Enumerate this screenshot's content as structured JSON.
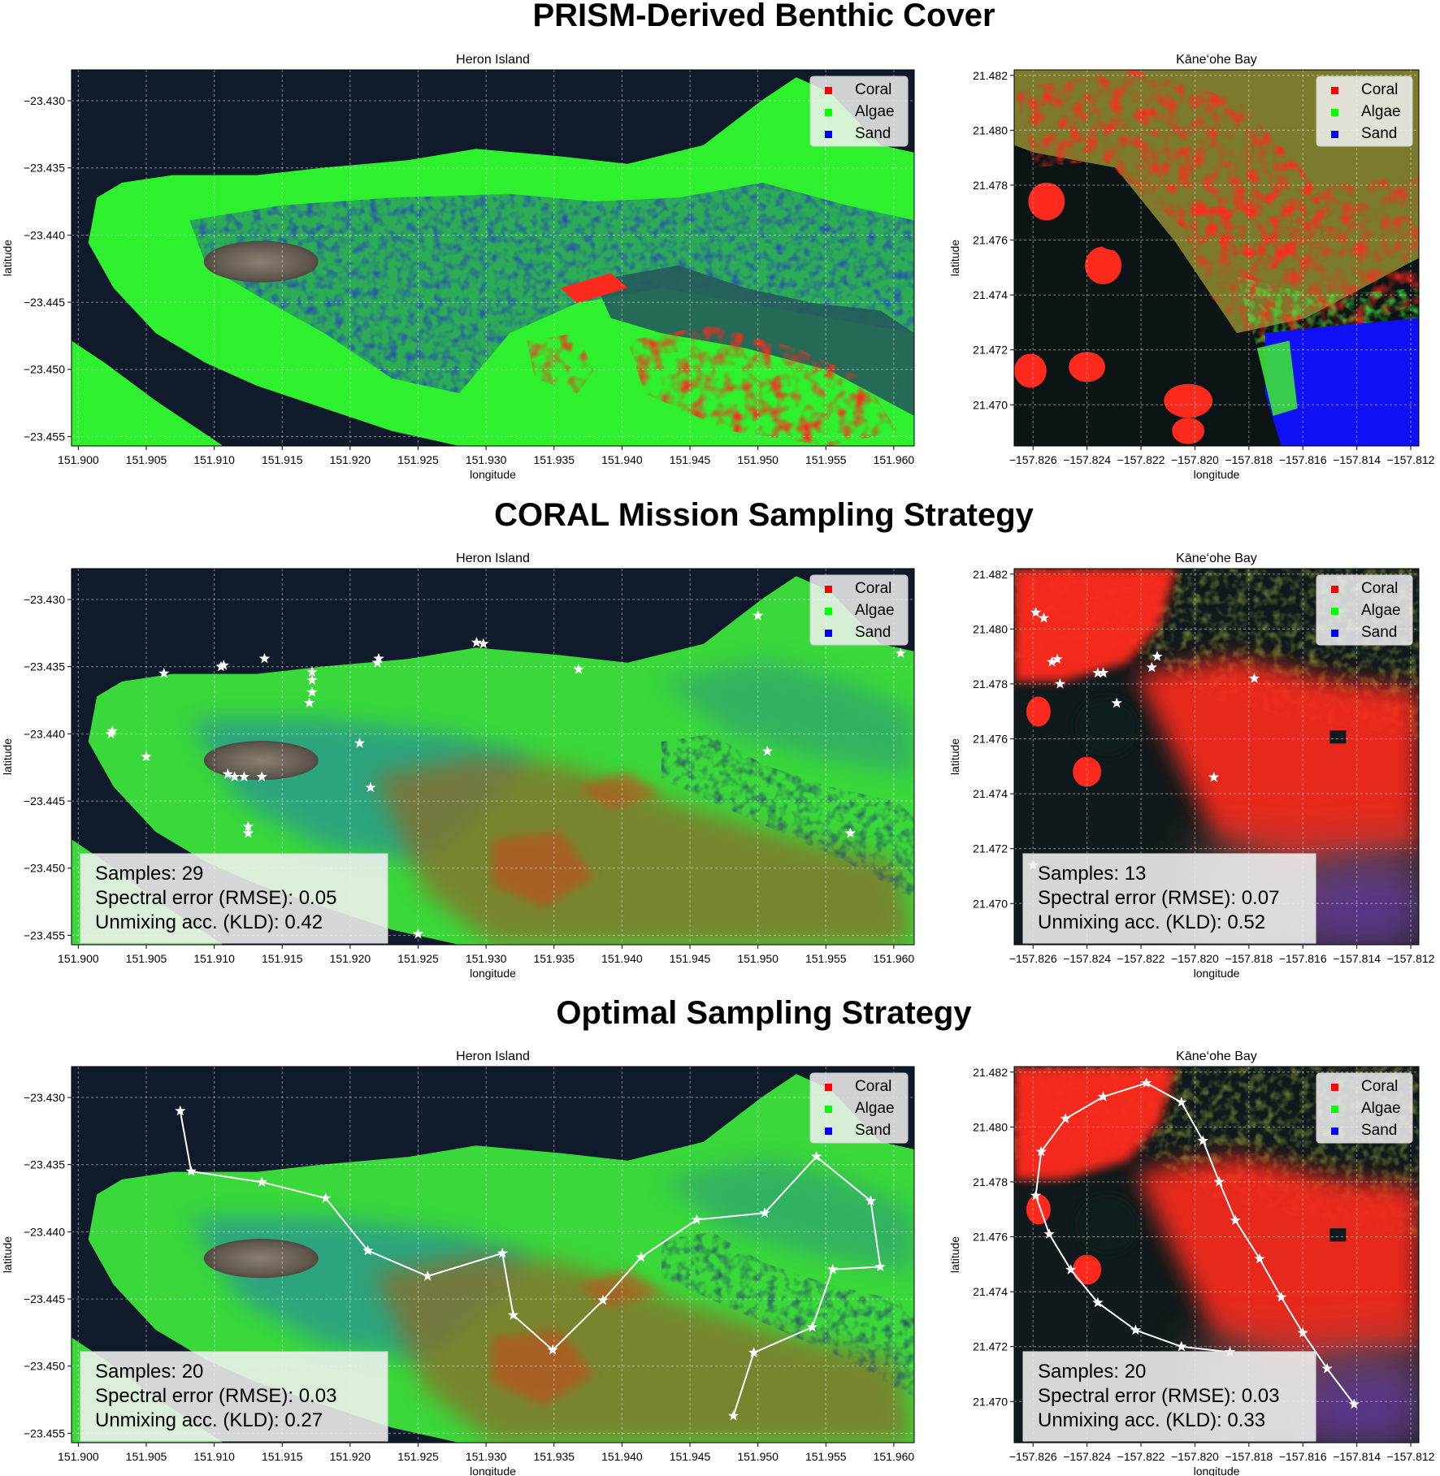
{
  "section_titles": [
    "PRISM-Derived Benthic Cover",
    "CORAL Mission Sampling Strategy",
    "Optimal Sampling Strategy"
  ],
  "legend": [
    {
      "label": "Coral",
      "color": "#ff0000"
    },
    {
      "label": "Algae",
      "color": "#00ff00"
    },
    {
      "label": "Sand",
      "color": "#0000ff"
    }
  ],
  "colors": {
    "coral": "#ff2a1e",
    "algae": "#2ef02e",
    "sand": "#1f3ee0",
    "deep_water": "#0f1a2a",
    "grid": "#ffffff",
    "path": "#ffffff",
    "land": "#6e6458"
  },
  "chart_data": [
    {
      "type": "heatmap",
      "row": 0,
      "title": "Heron Island",
      "xlabel": "longitude",
      "ylabel": "latitude",
      "xlim": [
        151.8995,
        151.9615
      ],
      "ylim": [
        -23.4557,
        -23.4277
      ],
      "xticks": [
        "151.900",
        "151.905",
        "151.910",
        "151.915",
        "151.920",
        "151.925",
        "151.930",
        "151.935",
        "151.940",
        "151.945",
        "151.950",
        "151.955",
        "151.960"
      ],
      "yticks": [
        "−23.430",
        "−23.435",
        "−23.440",
        "−23.445",
        "−23.450",
        "−23.455"
      ],
      "grid": true,
      "legend_position": "top-right",
      "map_style": "heron-classified",
      "samples": [],
      "path": false
    },
    {
      "type": "heatmap",
      "row": 0,
      "title": "Kāne‘ohe Bay",
      "xlabel": "longitude",
      "ylabel": "latitude",
      "xlim": [
        -157.8267,
        -157.8117
      ],
      "ylim": [
        21.4685,
        21.4822
      ],
      "xticks": [
        "−157.826",
        "−157.824",
        "−157.822",
        "−157.820",
        "−157.818",
        "−157.816",
        "−157.814",
        "−157.812"
      ],
      "yticks": [
        "21.482",
        "21.480",
        "21.478",
        "21.476",
        "21.474",
        "21.472",
        "21.470"
      ],
      "grid": true,
      "legend_position": "top-right",
      "map_style": "kaneohe-classified",
      "samples": [],
      "path": false
    },
    {
      "type": "heatmap",
      "row": 1,
      "title": "Heron Island",
      "xlabel": "longitude",
      "ylabel": "latitude",
      "xlim": [
        151.8995,
        151.9615
      ],
      "ylim": [
        -23.4557,
        -23.4277
      ],
      "xticks": [
        "151.900",
        "151.905",
        "151.910",
        "151.915",
        "151.920",
        "151.925",
        "151.930",
        "151.935",
        "151.940",
        "151.945",
        "151.950",
        "151.955",
        "151.960"
      ],
      "yticks": [
        "−23.430",
        "−23.435",
        "−23.440",
        "−23.445",
        "−23.450",
        "−23.455"
      ],
      "grid": true,
      "legend_position": "top-right",
      "map_style": "heron-smooth",
      "samples": [
        [
          151.9025,
          -23.4398
        ],
        [
          151.905,
          -23.4417
        ],
        [
          151.9063,
          -23.4355
        ],
        [
          151.9105,
          -23.435
        ],
        [
          151.9107,
          -23.4349
        ],
        [
          151.911,
          -23.443
        ],
        [
          151.9115,
          -23.4432
        ],
        [
          151.9122,
          -23.4432
        ],
        [
          151.9125,
          -23.4469
        ],
        [
          151.9125,
          -23.4474
        ],
        [
          151.9137,
          -23.4344
        ],
        [
          151.9172,
          -23.4354
        ],
        [
          151.9172,
          -23.4369
        ],
        [
          151.917,
          -23.4377
        ],
        [
          151.9207,
          -23.4407
        ],
        [
          151.9215,
          -23.444
        ],
        [
          151.922,
          -23.4347
        ],
        [
          151.9221,
          -23.4344
        ],
        [
          151.925,
          -23.4549
        ],
        [
          151.9293,
          -23.4332
        ],
        [
          151.9298,
          -23.4333
        ],
        [
          151.9368,
          -23.4352
        ],
        [
          151.95,
          -23.4312
        ],
        [
          151.9507,
          -23.4413
        ],
        [
          151.9568,
          -23.4474
        ],
        [
          151.9605,
          -23.434
        ],
        [
          151.9135,
          -23.4432
        ],
        [
          151.9172,
          -23.436
        ],
        [
          151.9024,
          -23.44
        ]
      ],
      "path": false,
      "stats": {
        "samples": "Samples: 29",
        "rmse": "Spectral error (RMSE): 0.05",
        "kld": "Unmixing acc. (KLD): 0.42"
      }
    },
    {
      "type": "heatmap",
      "row": 1,
      "title": "Kāne‘ohe Bay",
      "xlabel": "longitude",
      "ylabel": "latitude",
      "xlim": [
        -157.8267,
        -157.8117
      ],
      "ylim": [
        21.4685,
        21.4822
      ],
      "xticks": [
        "−157.826",
        "−157.824",
        "−157.822",
        "−157.820",
        "−157.818",
        "−157.816",
        "−157.814",
        "−157.812"
      ],
      "yticks": [
        "21.482",
        "21.480",
        "21.478",
        "21.476",
        "21.474",
        "21.472",
        "21.470"
      ],
      "grid": true,
      "legend_position": "top-right",
      "map_style": "kaneohe-smooth",
      "samples": [
        [
          -157.8259,
          21.4806
        ],
        [
          -157.8256,
          21.4804
        ],
        [
          -157.8253,
          21.4788
        ],
        [
          -157.8251,
          21.4789
        ],
        [
          -157.825,
          21.478
        ],
        [
          -157.8236,
          21.4784
        ],
        [
          -157.8234,
          21.4784
        ],
        [
          -157.8229,
          21.4773
        ],
        [
          -157.8216,
          21.4786
        ],
        [
          -157.8214,
          21.479
        ],
        [
          -157.8193,
          21.4746
        ],
        [
          -157.8178,
          21.4782
        ],
        [
          -157.826,
          21.4714
        ]
      ],
      "path": false,
      "stats": {
        "samples": "Samples: 13",
        "rmse": "Spectral error (RMSE): 0.07",
        "kld": "Unmixing acc. (KLD): 0.52"
      }
    },
    {
      "type": "heatmap",
      "row": 2,
      "title": "Heron Island",
      "xlabel": "longitude",
      "ylabel": "latitude",
      "xlim": [
        151.8995,
        151.9615
      ],
      "ylim": [
        -23.4557,
        -23.4277
      ],
      "xticks": [
        "151.900",
        "151.905",
        "151.910",
        "151.915",
        "151.920",
        "151.925",
        "151.930",
        "151.935",
        "151.940",
        "151.945",
        "151.950",
        "151.955",
        "151.960"
      ],
      "yticks": [
        "−23.430",
        "−23.435",
        "−23.440",
        "−23.445",
        "−23.450",
        "−23.455"
      ],
      "grid": true,
      "legend_position": "top-right",
      "map_style": "heron-smooth",
      "samples": [
        [
          151.9075,
          -23.431
        ],
        [
          151.9083,
          -23.4355
        ],
        [
          151.9135,
          -23.4363
        ],
        [
          151.9182,
          -23.4375
        ],
        [
          151.9213,
          -23.4414
        ],
        [
          151.9257,
          -23.4433
        ],
        [
          151.9312,
          -23.4416
        ],
        [
          151.932,
          -23.4462
        ],
        [
          151.9349,
          -23.4488
        ],
        [
          151.9386,
          -23.4451
        ],
        [
          151.9414,
          -23.4419
        ],
        [
          151.9455,
          -23.4391
        ],
        [
          151.9505,
          -23.4386
        ],
        [
          151.9543,
          -23.4344
        ],
        [
          151.9583,
          -23.4377
        ],
        [
          151.959,
          -23.4426
        ],
        [
          151.9555,
          -23.4428
        ],
        [
          151.954,
          -23.4471
        ],
        [
          151.9497,
          -23.449
        ],
        [
          151.9482,
          -23.4537
        ]
      ],
      "path": true,
      "stats": {
        "samples": "Samples: 20",
        "rmse": "Spectral error (RMSE): 0.03",
        "kld": "Unmixing acc. (KLD): 0.27"
      }
    },
    {
      "type": "heatmap",
      "row": 2,
      "title": "Kāne‘ohe Bay",
      "xlabel": "longitude",
      "ylabel": "latitude",
      "xlim": [
        -157.8267,
        -157.8117
      ],
      "ylim": [
        21.4685,
        21.4822
      ],
      "xticks": [
        "−157.826",
        "−157.824",
        "−157.822",
        "−157.820",
        "−157.818",
        "−157.816",
        "−157.814",
        "−157.812"
      ],
      "yticks": [
        "21.482",
        "21.480",
        "21.478",
        "21.476",
        "21.474",
        "21.472",
        "21.470"
      ],
      "grid": true,
      "legend_position": "top-right",
      "map_style": "kaneohe-smooth",
      "samples": [
        [
          -157.8141,
          21.4699
        ],
        [
          -157.8151,
          21.4712
        ],
        [
          -157.816,
          21.4725
        ],
        [
          -157.8168,
          21.4738
        ],
        [
          -157.8176,
          21.4752
        ],
        [
          -157.8185,
          21.4766
        ],
        [
          -157.8191,
          21.478
        ],
        [
          -157.8197,
          21.4795
        ],
        [
          -157.8205,
          21.4809
        ],
        [
          -157.8218,
          21.4816
        ],
        [
          -157.8234,
          21.4811
        ],
        [
          -157.8248,
          21.4803
        ],
        [
          -157.8257,
          21.4791
        ],
        [
          -157.8259,
          21.4775
        ],
        [
          -157.8254,
          21.4761
        ],
        [
          -157.8246,
          21.4748
        ],
        [
          -157.8236,
          21.4736
        ],
        [
          -157.8222,
          21.4726
        ],
        [
          -157.8205,
          21.472
        ],
        [
          -157.8187,
          21.4718
        ]
      ],
      "path": true,
      "stats": {
        "samples": "Samples: 20",
        "rmse": "Spectral error (RMSE): 0.03",
        "kld": "Unmixing acc. (KLD): 0.33"
      }
    }
  ]
}
